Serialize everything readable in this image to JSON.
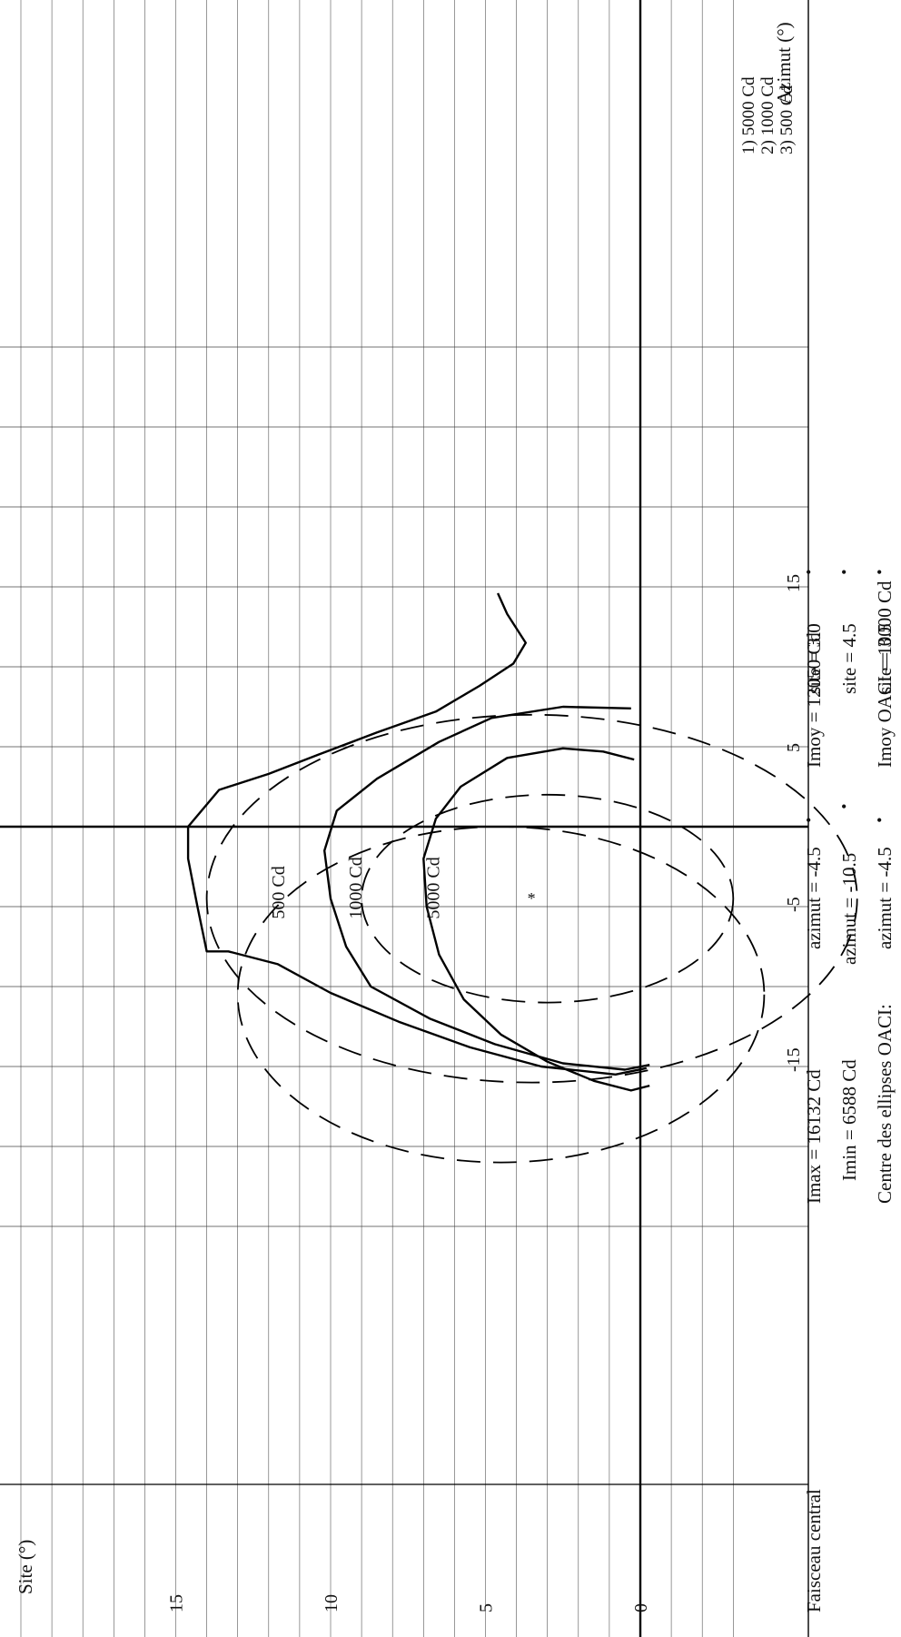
{
  "chart_data": {
    "type": "line",
    "orientation": "rotated-90-ccw",
    "xlabel": "Azimut (°)",
    "ylabel": "Site (°)",
    "xlim": [
      -20,
      25
    ],
    "ylim": [
      -1,
      18
    ],
    "x_ticks": [
      -15,
      -5,
      5,
      15
    ],
    "x_tick_labels": [
      "-15",
      "-5",
      "5",
      "15"
    ],
    "y_ticks": [
      0,
      5,
      10,
      15
    ],
    "y_tick_labels": [
      "0",
      "5",
      "10",
      "15"
    ],
    "grid": true,
    "legend_items": [
      "1) 5000  Cd",
      "2) 1000  Cd",
      "3) 500   Cd"
    ],
    "series": [
      {
        "name": "5000 Cd",
        "style": "solid",
        "points": [
          [
            -16.2,
            -0.3
          ],
          [
            -16.5,
            0.3
          ],
          [
            -15.9,
            1.5
          ],
          [
            -14.7,
            3
          ],
          [
            -13,
            4.5
          ],
          [
            -10.8,
            5.7
          ],
          [
            -8,
            6.5
          ],
          [
            -5,
            6.9
          ],
          [
            -2,
            7
          ],
          [
            0.5,
            6.6
          ],
          [
            2.5,
            5.8
          ],
          [
            4.3,
            4.3
          ],
          [
            4.9,
            2.5
          ],
          [
            4.7,
            1.2
          ],
          [
            4.2,
            0.2
          ]
        ]
      },
      {
        "name": "1000 Cd",
        "style": "solid",
        "points": [
          [
            -14.9,
            -0.3
          ],
          [
            -15.2,
            0.5
          ],
          [
            -14.8,
            2.5
          ],
          [
            -13.6,
            4.7
          ],
          [
            -12,
            6.8
          ],
          [
            -10,
            8.7
          ],
          [
            -7.5,
            9.5
          ],
          [
            -4.5,
            10
          ],
          [
            -1.5,
            10.2
          ],
          [
            1,
            9.8
          ],
          [
            3,
            8.5
          ],
          [
            5.3,
            6.5
          ],
          [
            6.8,
            4.8
          ],
          [
            7.5,
            2.5
          ],
          [
            7.4,
            0.3
          ]
        ]
      },
      {
        "name": "500 Cd",
        "style": "solid",
        "points": [
          [
            -15.1,
            -0.2
          ],
          [
            -15.5,
            0.8
          ],
          [
            -15,
            3.2
          ],
          [
            -13.8,
            5.5
          ],
          [
            -12.2,
            7.8
          ],
          [
            -10.4,
            10
          ],
          [
            -8.6,
            11.7
          ],
          [
            -7.8,
            13.3
          ],
          [
            -7.8,
            14
          ],
          [
            -5,
            14.3
          ],
          [
            -2,
            14.6
          ],
          [
            0,
            14.6
          ],
          [
            2.3,
            13.6
          ],
          [
            3.3,
            12
          ],
          [
            4.5,
            10.4
          ],
          [
            5.9,
            8.5
          ],
          [
            7.2,
            6.6
          ],
          [
            8.8,
            5.2
          ],
          [
            10.2,
            4.1
          ],
          [
            11.5,
            3.7
          ],
          [
            13.3,
            4.3
          ],
          [
            14.6,
            4.6
          ]
        ]
      },
      {
        "name": "ellipse 5000 Cd",
        "style": "dashed",
        "ellipse": {
          "cx": -4.5,
          "cy": 3.0,
          "rx": 6.5,
          "ry": 6.0
        }
      },
      {
        "name": "ellipse 1000 Cd",
        "style": "dashed",
        "ellipse": {
          "cx": -10.5,
          "cy": 4.5,
          "rx": 10.5,
          "ry": 8.5
        }
      },
      {
        "name": "ellipse 500 Cd",
        "style": "dashed",
        "ellipse": {
          "cx": -4.5,
          "cy": 3.5,
          "rx": 11.5,
          "ry": 10.5
        }
      }
    ],
    "center_marker": {
      "x": -4.5,
      "y": 3.5,
      "symbol": "*"
    },
    "curve_labels": [
      {
        "text": "500 Cd",
        "x": -3.5,
        "y": 11.5
      },
      {
        "text": "1000 Cd",
        "x": -3.5,
        "y": 9.0
      },
      {
        "text": "5000 Cd",
        "x": -3.5,
        "y": 6.5
      }
    ]
  },
  "info": {
    "faisceau": "Faisceau central",
    "imax": "Imax = 16132 Cd",
    "imin": "Imin = 6588 Cd",
    "imoy": "Imoy = 12050 Cd",
    "imoy_oaci": "Imoy OACI = 10000 Cd",
    "centres_label": "Centre des ellipses OACI:",
    "azimut_1": "azimut = -4.5",
    "azimut_2": "azimut = -10.5",
    "azimut_3": "azimut = -4.5",
    "site_1": "site = 3.0",
    "site_2": "site = 4.5",
    "site_3": "site = 3.5",
    "degree_mark": "•"
  }
}
